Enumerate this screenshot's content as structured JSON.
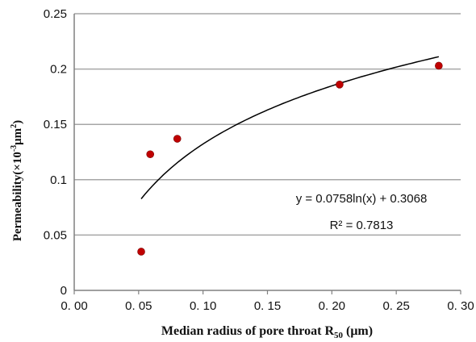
{
  "chart_data": {
    "type": "scatter",
    "xlabel_text": "Median radius of pore throat R",
    "xlabel_sub": "50",
    "xlabel_unit": " (μm)",
    "ylabel_text": "Permeability(×10",
    "ylabel_sup1": "-3",
    "ylabel_mid": "μm",
    "ylabel_sup2": "2",
    "ylabel_end": ")",
    "xlim": [
      0.0,
      0.3
    ],
    "ylim": [
      0,
      0.25
    ],
    "x_ticks": [
      0.0,
      0.05,
      0.1,
      0.15,
      0.2,
      0.25,
      0.3
    ],
    "x_tick_labels": [
      "0. 00",
      "0. 05",
      "0. 10",
      "0. 15",
      "0. 20",
      "0. 25",
      "0. 30"
    ],
    "y_ticks": [
      0,
      0.05,
      0.1,
      0.15,
      0.2,
      0.25
    ],
    "y_tick_labels": [
      "0",
      "0.05",
      "0.1",
      "0.15",
      "0.2",
      "0.25"
    ],
    "grid": "horizontal",
    "points": [
      {
        "x": 0.052,
        "y": 0.035
      },
      {
        "x": 0.059,
        "y": 0.123
      },
      {
        "x": 0.08,
        "y": 0.137
      },
      {
        "x": 0.206,
        "y": 0.186
      },
      {
        "x": 0.283,
        "y": 0.203
      }
    ],
    "trendline": {
      "type": "log",
      "a": 0.0758,
      "b": 0.3068,
      "x_range": [
        0.052,
        0.283
      ],
      "equation": "y = 0.0758ln(x) + 0.3068",
      "r_squared": "R² = 0.7813"
    },
    "marker_color": "#c00000",
    "line_color": "#000000",
    "grid_color": "#a6a6a6"
  }
}
